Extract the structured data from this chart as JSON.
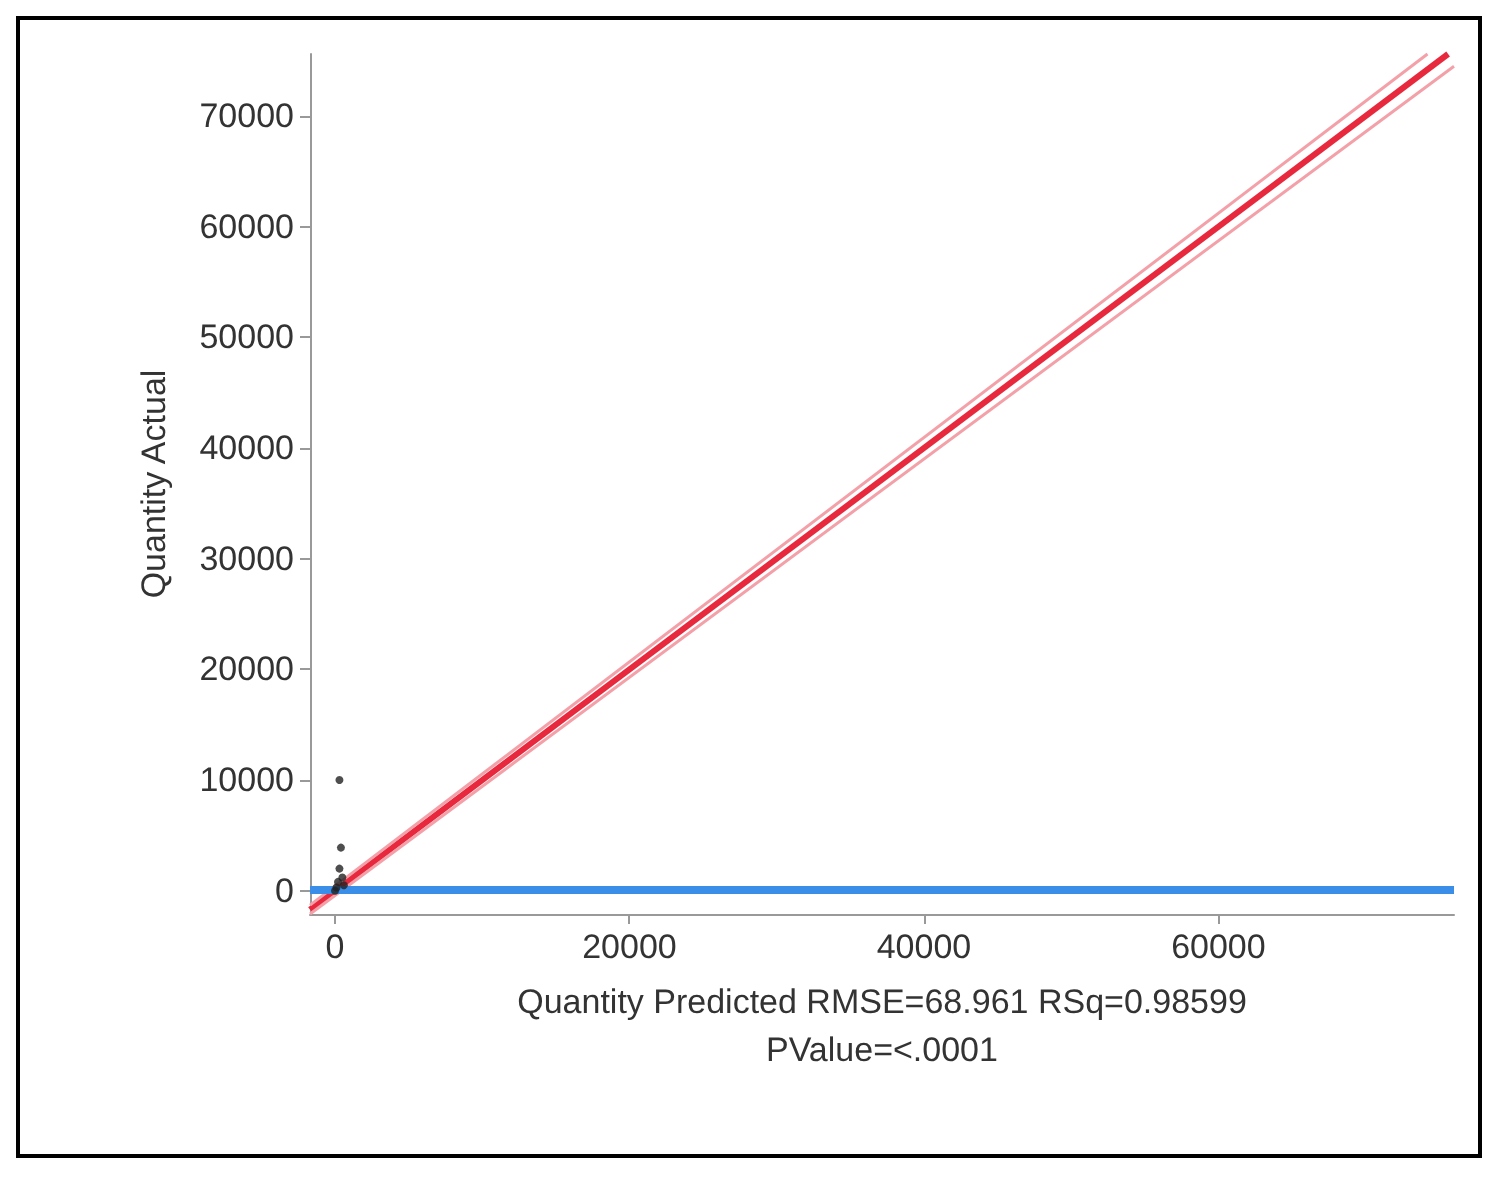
{
  "chart_data": {
    "type": "scatter",
    "ylabel": "Quantity Actual",
    "xlabel": "Quantity Predicted RMSE=68.961 RSq=0.98599\nPValue=<.0001",
    "xlim": [
      -1700,
      76000
    ],
    "ylim": [
      -2100,
      75600
    ],
    "xticks": [
      0,
      20000,
      40000,
      60000
    ],
    "yticks": [
      0,
      10000,
      20000,
      30000,
      40000,
      50000,
      60000,
      70000
    ],
    "grid": false,
    "marker": "circle",
    "series": [
      {
        "color": "#222222",
        "x": [
          0,
          100,
          200,
          300,
          400,
          500,
          300,
          600
        ],
        "values": [
          0,
          300,
          800,
          2000,
          3900,
          1200,
          10000,
          500
        ]
      },
      {
        "type": "line",
        "color": "#e8283c",
        "marker": "none",
        "line_style": "solid",
        "x": [
          -1700,
          75600
        ],
        "values": [
          -1700,
          75600
        ]
      },
      {
        "type": "line",
        "color": "#f4a0a8",
        "marker": "none",
        "line_style": "solid",
        "x": [
          -1700,
          74200
        ],
        "values": [
          -1300,
          75600
        ]
      },
      {
        "type": "line",
        "color": "#f4a0a8",
        "marker": "none",
        "line_style": "solid",
        "x": [
          -1700,
          76000
        ],
        "values": [
          -2100,
          74500
        ]
      }
    ],
    "ref_lines": [
      {
        "axis": "y",
        "value": 200,
        "color": "#3b8ee8"
      }
    ]
  }
}
